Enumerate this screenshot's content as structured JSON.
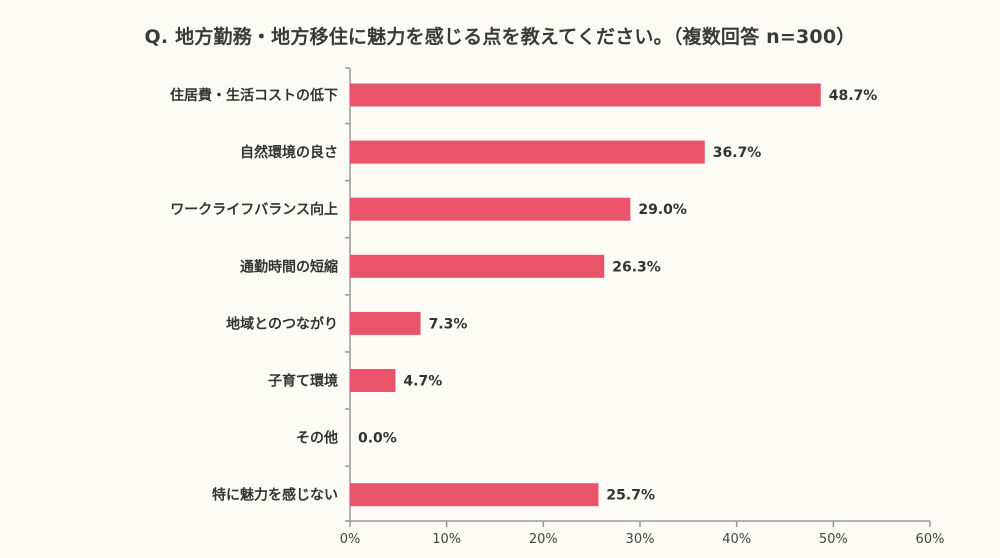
{
  "title": "Q. 地方勤務・地方移住に魅力を感じる点を教えてください。（複数回答 n=300）",
  "chart_data": {
    "type": "bar",
    "orientation": "horizontal",
    "title": "Q. 地方勤務・地方移住に魅力を感じる点を教えてください。（複数回答 n=300）",
    "categories": [
      "住居費・生活コストの低下",
      "自然環境の良さ",
      "ワークライフバランス向上",
      "通勤時間の短縮",
      "地域とのつながり",
      "子育て環境",
      "その他",
      "特に魅力を感じない"
    ],
    "values": [
      48.7,
      36.7,
      29.0,
      26.3,
      7.3,
      4.7,
      0.0,
      25.7
    ],
    "value_labels": [
      "48.7%",
      "36.7%",
      "29.0%",
      "26.3%",
      "7.3%",
      "4.7%",
      "0.0%",
      "25.7%"
    ],
    "xlim": [
      0,
      60
    ],
    "xticks": [
      0,
      10,
      20,
      30,
      40,
      50,
      60
    ],
    "xtick_labels": [
      "0%",
      "10%",
      "20%",
      "30%",
      "40%",
      "50%",
      "60%"
    ],
    "xlabel": "",
    "ylabel": "",
    "grid": false,
    "legend": "none",
    "bar_color": "#e9546b"
  },
  "colors": {
    "background": "#fdfbf5",
    "bar": "#e9546b",
    "axis": "#999999"
  }
}
